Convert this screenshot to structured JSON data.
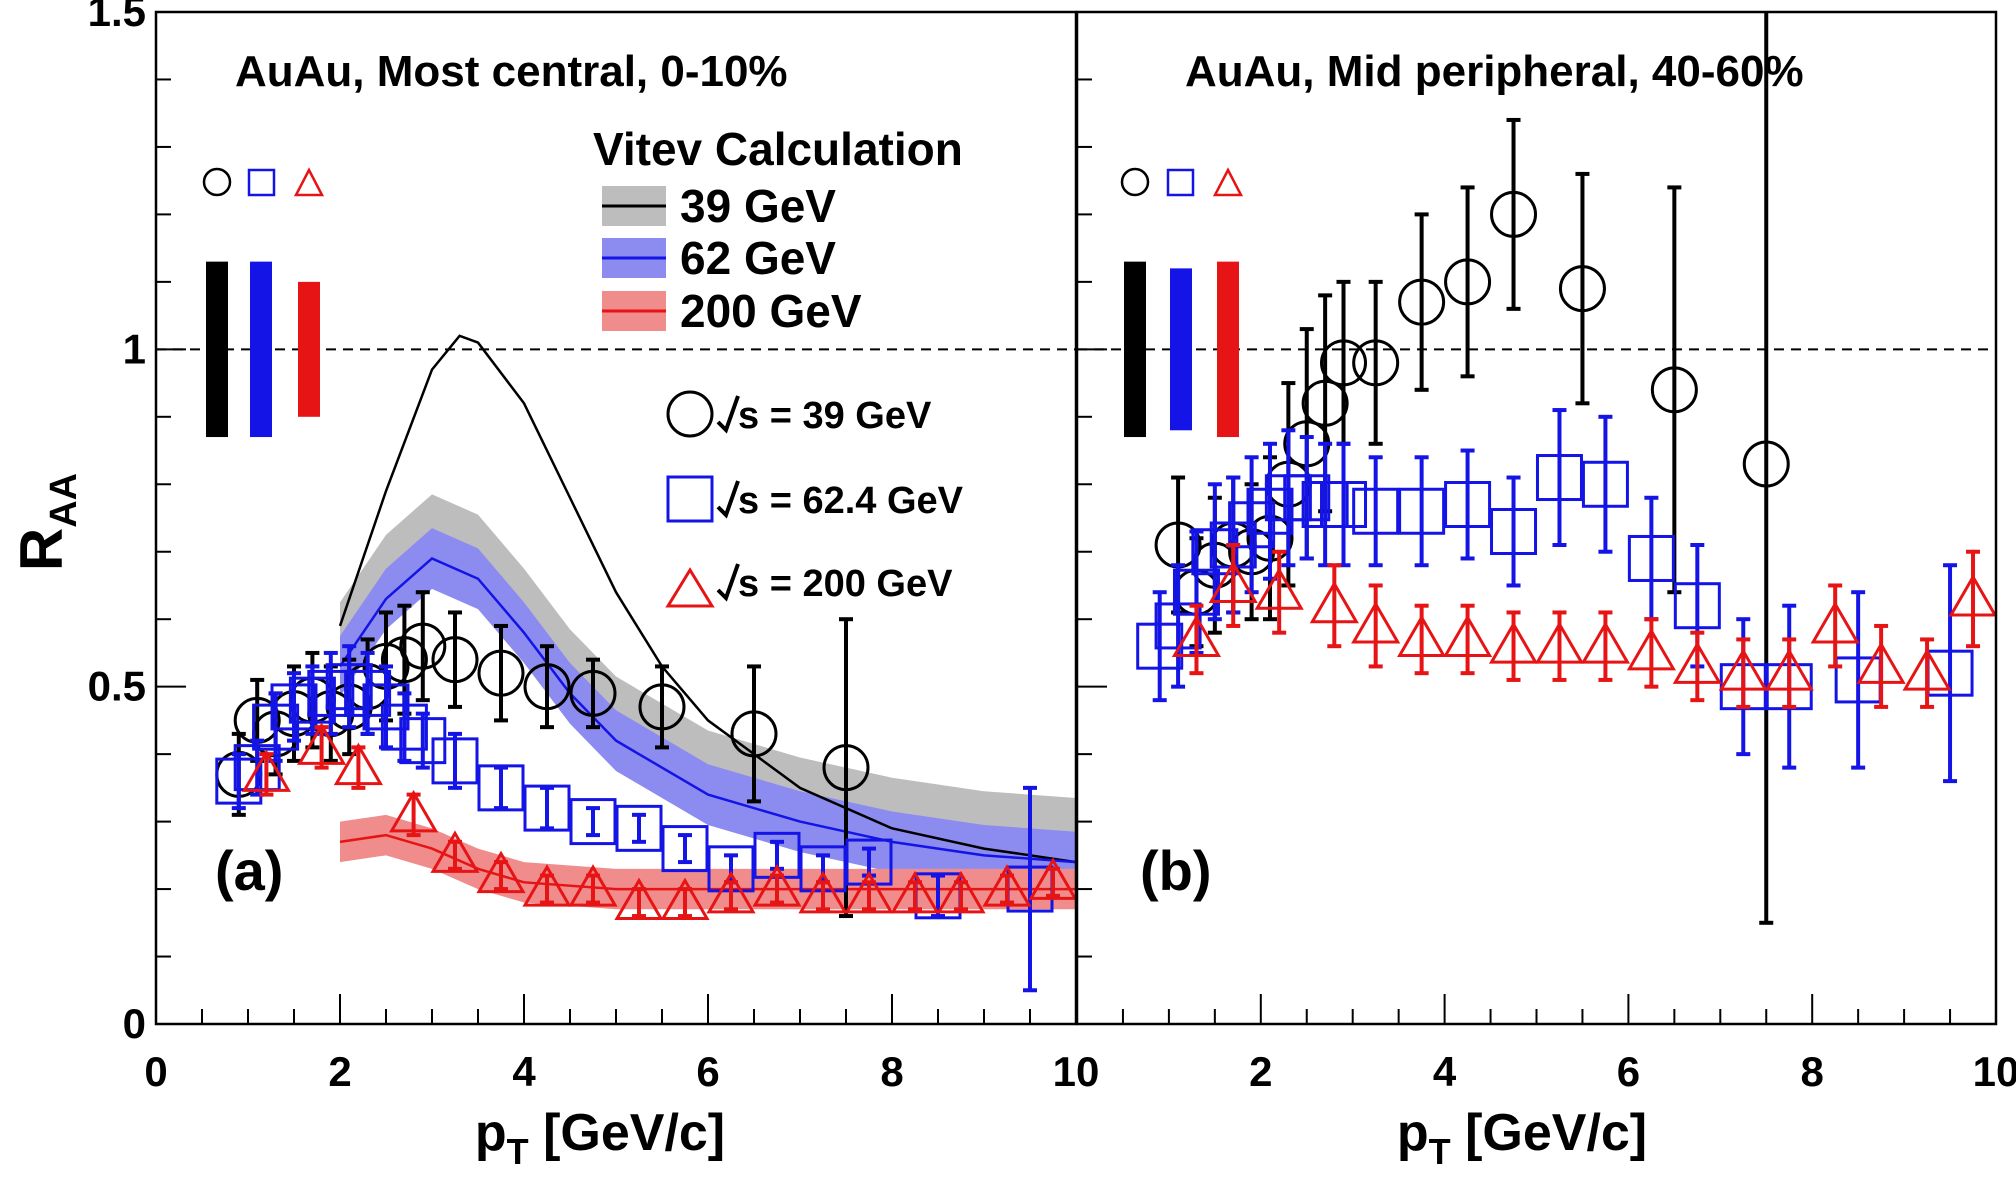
{
  "colors": {
    "black": "#000000",
    "blue": "#1414e6",
    "red": "#e61414",
    "grayBand": "#bdbdbd",
    "blueBand": "#8c8cf0",
    "redBand": "#f08c8c"
  },
  "yaxis": {
    "ticks": [
      "0",
      "0.5",
      "1",
      "1.5"
    ],
    "label_main": "R",
    "label_sub": "AA"
  },
  "xaxis": {
    "ticks": [
      "0",
      "2",
      "4",
      "6",
      "8",
      "10"
    ],
    "label_main": "p",
    "label_sub": "T",
    "label_rest": " [GeV/c]"
  },
  "panels": [
    {
      "letter": "(a)",
      "title": "AuAu, Most central, 0-10%"
    },
    {
      "letter": "(b)",
      "title": "AuAu, Mid peripheral, 40-60%"
    }
  ],
  "legend_model": {
    "heading": "Vitev Calculation",
    "entries": [
      "39 GeV",
      "62 GeV",
      "200 GeV"
    ]
  },
  "legend_data": {
    "prefix": "s",
    "entries": [
      " = 39 GeV",
      " = 62.4 GeV",
      " = 200 GeV"
    ]
  },
  "chart_data": [
    {
      "type": "scatter",
      "panel": "(a)",
      "title": "AuAu, Most central, 0-10%",
      "xlabel": "p_T [GeV/c]",
      "ylabel": "R_AA",
      "xlim": [
        0,
        10
      ],
      "ylim": [
        0,
        1.5
      ],
      "reference_line": 1,
      "norm_uncertainty": [
        {
          "series": "39 GeV",
          "low": 0.87,
          "high": 1.13
        },
        {
          "series": "62.4 GeV",
          "low": 0.87,
          "high": 1.13
        },
        {
          "series": "200 GeV",
          "low": 0.9,
          "high": 1.1
        }
      ],
      "series": [
        {
          "name": "√s = 39 GeV",
          "marker": "circle",
          "points": [
            [
              0.9,
              0.37,
              0.06,
              0.06
            ],
            [
              1.1,
              0.45,
              0.06,
              0.06
            ],
            [
              1.3,
              0.43,
              0.06,
              0.06
            ],
            [
              1.5,
              0.46,
              0.07,
              0.07
            ],
            [
              1.7,
              0.48,
              0.07,
              0.07
            ],
            [
              1.9,
              0.46,
              0.07,
              0.07
            ],
            [
              2.1,
              0.47,
              0.07,
              0.07
            ],
            [
              2.3,
              0.5,
              0.07,
              0.07
            ],
            [
              2.5,
              0.53,
              0.08,
              0.08
            ],
            [
              2.7,
              0.54,
              0.08,
              0.08
            ],
            [
              2.9,
              0.56,
              0.08,
              0.08
            ],
            [
              3.25,
              0.54,
              0.07,
              0.07
            ],
            [
              3.75,
              0.52,
              0.07,
              0.07
            ],
            [
              4.25,
              0.5,
              0.06,
              0.06
            ],
            [
              4.75,
              0.49,
              0.05,
              0.05
            ],
            [
              5.5,
              0.47,
              0.06,
              0.06
            ],
            [
              6.5,
              0.43,
              0.1,
              0.1
            ],
            [
              7.5,
              0.38,
              0.22,
              0.22
            ]
          ]
        },
        {
          "name": "√s = 62.4 GeV",
          "marker": "square",
          "points": [
            [
              0.9,
              0.36,
              0.04,
              0.04
            ],
            [
              1.1,
              0.38,
              0.04,
              0.04
            ],
            [
              1.3,
              0.44,
              0.05,
              0.05
            ],
            [
              1.5,
              0.47,
              0.05,
              0.05
            ],
            [
              1.7,
              0.48,
              0.05,
              0.05
            ],
            [
              1.9,
              0.49,
              0.06,
              0.06
            ],
            [
              2.1,
              0.5,
              0.06,
              0.06
            ],
            [
              2.3,
              0.49,
              0.06,
              0.06
            ],
            [
              2.5,
              0.47,
              0.06,
              0.06
            ],
            [
              2.7,
              0.44,
              0.05,
              0.05
            ],
            [
              2.9,
              0.42,
              0.04,
              0.04
            ],
            [
              3.25,
              0.39,
              0.04,
              0.04
            ],
            [
              3.75,
              0.35,
              0.03,
              0.03
            ],
            [
              4.25,
              0.32,
              0.03,
              0.03
            ],
            [
              4.75,
              0.3,
              0.02,
              0.02
            ],
            [
              5.25,
              0.29,
              0.02,
              0.02
            ],
            [
              5.75,
              0.26,
              0.02,
              0.02
            ],
            [
              6.25,
              0.23,
              0.02,
              0.02
            ],
            [
              6.75,
              0.25,
              0.02,
              0.02
            ],
            [
              7.25,
              0.23,
              0.02,
              0.02
            ],
            [
              7.75,
              0.24,
              0.02,
              0.02
            ],
            [
              8.5,
              0.19,
              0.03,
              0.03
            ],
            [
              9.5,
              0.2,
              0.15,
              0.15
            ]
          ]
        },
        {
          "name": "√s = 200 GeV",
          "marker": "triangle",
          "points": [
            [
              1.2,
              0.37,
              0.03,
              0.03
            ],
            [
              1.8,
              0.41,
              0.03,
              0.03
            ],
            [
              2.2,
              0.38,
              0.03,
              0.03
            ],
            [
              2.8,
              0.31,
              0.03,
              0.03
            ],
            [
              3.25,
              0.25,
              0.02,
              0.02
            ],
            [
              3.75,
              0.22,
              0.02,
              0.02
            ],
            [
              4.25,
              0.2,
              0.02,
              0.02
            ],
            [
              4.75,
              0.2,
              0.02,
              0.02
            ],
            [
              5.25,
              0.18,
              0.02,
              0.02
            ],
            [
              5.75,
              0.18,
              0.02,
              0.02
            ],
            [
              6.25,
              0.19,
              0.02,
              0.02
            ],
            [
              6.75,
              0.2,
              0.02,
              0.02
            ],
            [
              7.25,
              0.19,
              0.02,
              0.02
            ],
            [
              7.75,
              0.19,
              0.02,
              0.02
            ],
            [
              8.25,
              0.19,
              0.02,
              0.02
            ],
            [
              8.75,
              0.19,
              0.02,
              0.02
            ],
            [
              9.25,
              0.2,
              0.02,
              0.02
            ],
            [
              9.75,
              0.21,
              0.02,
              0.02
            ]
          ]
        }
      ],
      "models": [
        {
          "name": "39 GeV",
          "curve": [
            [
              2.0,
              0.59
            ],
            [
              2.5,
              0.79
            ],
            [
              3.0,
              0.97
            ],
            [
              3.3,
              1.02
            ],
            [
              3.5,
              1.01
            ],
            [
              4.0,
              0.92
            ],
            [
              4.5,
              0.78
            ],
            [
              5.0,
              0.64
            ],
            [
              5.5,
              0.53
            ],
            [
              6.0,
              0.45
            ],
            [
              7.0,
              0.35
            ],
            [
              8.0,
              0.29
            ],
            [
              9.0,
              0.26
            ],
            [
              10.0,
              0.24
            ]
          ]
        },
        {
          "name": "62 GeV",
          "curve": [
            [
              2.0,
              0.53
            ],
            [
              2.5,
              0.63
            ],
            [
              3.0,
              0.69
            ],
            [
              3.5,
              0.66
            ],
            [
              4.0,
              0.58
            ],
            [
              4.5,
              0.49
            ],
            [
              5.0,
              0.42
            ],
            [
              6.0,
              0.34
            ],
            [
              7.0,
              0.3
            ],
            [
              8.0,
              0.27
            ],
            [
              9.0,
              0.25
            ],
            [
              10.0,
              0.24
            ]
          ],
          "band": 0.045
        },
        {
          "name": "200 GeV",
          "curve": [
            [
              2.0,
              0.27
            ],
            [
              2.5,
              0.28
            ],
            [
              3.0,
              0.26
            ],
            [
              3.5,
              0.23
            ],
            [
              4.0,
              0.21
            ],
            [
              5.0,
              0.2
            ],
            [
              6.0,
              0.2
            ],
            [
              7.0,
              0.2
            ],
            [
              8.0,
              0.2
            ],
            [
              9.0,
              0.2
            ],
            [
              10.0,
              0.2
            ]
          ],
          "band": 0.03
        }
      ]
    },
    {
      "type": "scatter",
      "panel": "(b)",
      "title": "AuAu, Mid peripheral, 40-60%",
      "xlabel": "p_T [GeV/c]",
      "xlim": [
        0,
        10
      ],
      "ylim": [
        0,
        1.5
      ],
      "reference_line": 1,
      "norm_uncertainty": [
        {
          "series": "39 GeV",
          "low": 0.87,
          "high": 1.13
        },
        {
          "series": "62.4 GeV",
          "low": 0.88,
          "high": 1.12
        },
        {
          "series": "200 GeV",
          "low": 0.87,
          "high": 1.13
        }
      ],
      "series": [
        {
          "name": "√s = 39 GeV",
          "marker": "circle",
          "points": [
            [
              1.1,
              0.71,
              0.1,
              0.1
            ],
            [
              1.3,
              0.64,
              0.08,
              0.08
            ],
            [
              1.5,
              0.68,
              0.1,
              0.1
            ],
            [
              1.7,
              0.71,
              0.1,
              0.1
            ],
            [
              1.9,
              0.7,
              0.1,
              0.1
            ],
            [
              2.1,
              0.72,
              0.12,
              0.12
            ],
            [
              2.3,
              0.8,
              0.15,
              0.15
            ],
            [
              2.5,
              0.86,
              0.17,
              0.17
            ],
            [
              2.7,
              0.92,
              0.16,
              0.16
            ],
            [
              2.9,
              0.98,
              0.12,
              0.12
            ],
            [
              3.25,
              0.98,
              0.12,
              0.12
            ],
            [
              3.75,
              1.07,
              0.13,
              0.13
            ],
            [
              4.25,
              1.1,
              0.14,
              0.14
            ],
            [
              4.75,
              1.2,
              0.14,
              0.14
            ],
            [
              5.5,
              1.09,
              0.17,
              0.17
            ],
            [
              6.5,
              0.94,
              0.3,
              0.3
            ],
            [
              7.5,
              0.83,
              0.68,
              0.68
            ]
          ]
        },
        {
          "name": "√s = 62.4 GeV",
          "marker": "square",
          "points": [
            [
              0.9,
              0.56,
              0.08,
              0.08
            ],
            [
              1.1,
              0.59,
              0.09,
              0.09
            ],
            [
              1.3,
              0.64,
              0.09,
              0.09
            ],
            [
              1.5,
              0.7,
              0.1,
              0.1
            ],
            [
              1.7,
              0.71,
              0.1,
              0.1
            ],
            [
              1.9,
              0.74,
              0.1,
              0.1
            ],
            [
              2.1,
              0.76,
              0.1,
              0.1
            ],
            [
              2.3,
              0.78,
              0.1,
              0.1
            ],
            [
              2.5,
              0.78,
              0.09,
              0.09
            ],
            [
              2.7,
              0.77,
              0.09,
              0.09
            ],
            [
              2.9,
              0.77,
              0.09,
              0.09
            ],
            [
              3.25,
              0.76,
              0.08,
              0.08
            ],
            [
              3.75,
              0.76,
              0.08,
              0.08
            ],
            [
              4.25,
              0.77,
              0.08,
              0.08
            ],
            [
              4.75,
              0.73,
              0.08,
              0.08
            ],
            [
              5.25,
              0.81,
              0.1,
              0.1
            ],
            [
              5.75,
              0.8,
              0.1,
              0.1
            ],
            [
              6.25,
              0.69,
              0.09,
              0.09
            ],
            [
              6.75,
              0.62,
              0.09,
              0.09
            ],
            [
              7.25,
              0.5,
              0.1,
              0.1
            ],
            [
              7.75,
              0.5,
              0.12,
              0.12
            ],
            [
              8.5,
              0.51,
              0.13,
              0.13
            ],
            [
              9.5,
              0.52,
              0.16,
              0.16
            ]
          ]
        },
        {
          "name": "√s = 200 GeV",
          "marker": "triangle",
          "points": [
            [
              1.3,
              0.57,
              0.05,
              0.05
            ],
            [
              1.7,
              0.65,
              0.06,
              0.06
            ],
            [
              2.2,
              0.64,
              0.06,
              0.06
            ],
            [
              2.8,
              0.62,
              0.06,
              0.06
            ],
            [
              3.25,
              0.59,
              0.06,
              0.06
            ],
            [
              3.75,
              0.57,
              0.05,
              0.05
            ],
            [
              4.25,
              0.57,
              0.05,
              0.05
            ],
            [
              4.75,
              0.56,
              0.05,
              0.05
            ],
            [
              5.25,
              0.56,
              0.05,
              0.05
            ],
            [
              5.75,
              0.56,
              0.05,
              0.05
            ],
            [
              6.25,
              0.55,
              0.05,
              0.05
            ],
            [
              6.75,
              0.53,
              0.05,
              0.05
            ],
            [
              7.25,
              0.52,
              0.05,
              0.05
            ],
            [
              7.75,
              0.52,
              0.05,
              0.05
            ],
            [
              8.25,
              0.59,
              0.06,
              0.06
            ],
            [
              8.75,
              0.53,
              0.06,
              0.06
            ],
            [
              9.25,
              0.52,
              0.05,
              0.05
            ],
            [
              9.75,
              0.63,
              0.07,
              0.07
            ]
          ]
        }
      ]
    }
  ]
}
